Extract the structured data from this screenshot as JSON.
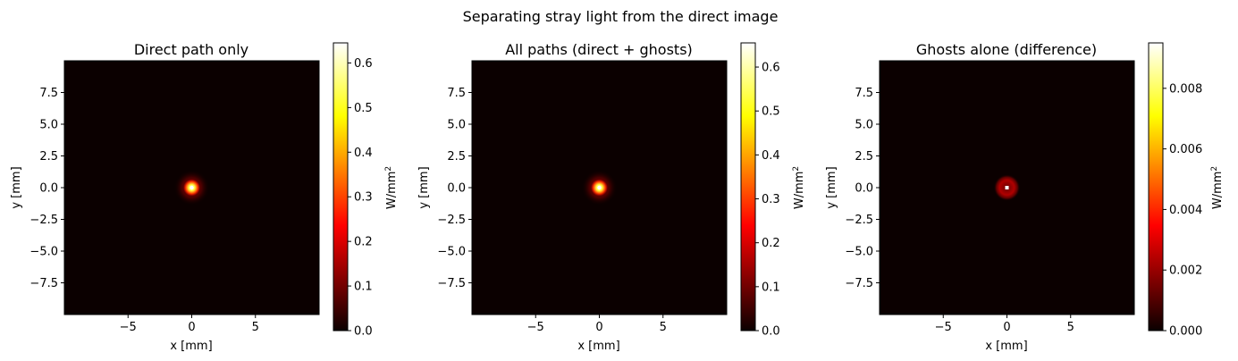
{
  "figure": {
    "suptitle": "Separating stray light from the direct image"
  },
  "chart_data": [
    {
      "type": "heatmap",
      "title": "Direct path only",
      "xlabel": "x [mm]",
      "ylabel": "y [mm]",
      "xlim": [
        -10,
        10
      ],
      "ylim": [
        -10,
        10
      ],
      "xticks": [
        -5,
        0,
        5
      ],
      "xtick_labels": [
        "−5",
        "0",
        "5"
      ],
      "yticks": [
        7.5,
        5.0,
        2.5,
        0.0,
        -2.5,
        -5.0,
        -7.5
      ],
      "ytick_labels": [
        "7.5",
        "5.0",
        "2.5",
        "0.0",
        "−2.5",
        "−5.0",
        "−7.5"
      ],
      "colormap": "hot",
      "colorbar": {
        "label": "W/mm",
        "label_superscript": "2",
        "vmin": 0.0,
        "vmax": 0.645,
        "ticks": [
          0.0,
          0.1,
          0.2,
          0.3,
          0.4,
          0.5,
          0.6
        ],
        "tick_labels": [
          "0.0",
          "0.1",
          "0.2",
          "0.3",
          "0.4",
          "0.5",
          "0.6"
        ]
      },
      "spot": {
        "x": 0,
        "y": 0,
        "peak": 0.645,
        "core_sigma_mm": 0.3,
        "halo_radius_mm": 1.4
      },
      "grid": false
    },
    {
      "type": "heatmap",
      "title": "All paths (direct + ghosts)",
      "xlabel": "x [mm]",
      "ylabel": "y [mm]",
      "xlim": [
        -10,
        10
      ],
      "ylim": [
        -10,
        10
      ],
      "xticks": [
        -5,
        0,
        5
      ],
      "xtick_labels": [
        "−5",
        "0",
        "5"
      ],
      "yticks": [
        7.5,
        5.0,
        2.5,
        0.0,
        -2.5,
        -5.0,
        -7.5
      ],
      "ytick_labels": [
        "7.5",
        "5.0",
        "2.5",
        "0.0",
        "−2.5",
        "−5.0",
        "−7.5"
      ],
      "colormap": "hot",
      "colorbar": {
        "label": "W/mm",
        "label_superscript": "2",
        "vmin": 0.0,
        "vmax": 0.655,
        "ticks": [
          0.0,
          0.1,
          0.2,
          0.3,
          0.4,
          0.5,
          0.6
        ],
        "tick_labels": [
          "0.0",
          "0.1",
          "0.2",
          "0.3",
          "0.4",
          "0.5",
          "0.6"
        ]
      },
      "spot": {
        "x": 0,
        "y": 0,
        "peak": 0.655,
        "core_sigma_mm": 0.3,
        "halo_radius_mm": 1.4
      },
      "grid": false
    },
    {
      "type": "heatmap",
      "title": "Ghosts alone (difference)",
      "xlabel": "x [mm]",
      "ylabel": "y [mm]",
      "xlim": [
        -10,
        10
      ],
      "ylim": [
        -10,
        10
      ],
      "xticks": [
        -5,
        0,
        5
      ],
      "xtick_labels": [
        "−5",
        "0",
        "5"
      ],
      "yticks": [
        7.5,
        5.0,
        2.5,
        0.0,
        -2.5,
        -5.0,
        -7.5
      ],
      "ytick_labels": [
        "7.5",
        "5.0",
        "2.5",
        "0.0",
        "−2.5",
        "−5.0",
        "−7.5"
      ],
      "colormap": "hot",
      "colorbar": {
        "label": "W/mm",
        "label_superscript": "2",
        "vmin": 0.0,
        "vmax": 0.0095,
        "ticks": [
          0.0,
          0.002,
          0.004,
          0.006,
          0.008
        ],
        "tick_labels": [
          "0.000",
          "0.002",
          "0.004",
          "0.006",
          "0.008"
        ]
      },
      "spot": {
        "x": 0,
        "y": 0,
        "peak": 0.0095,
        "ring_radius_mm": 0.55,
        "ring_value": 0.0018
      },
      "grid": false
    }
  ]
}
